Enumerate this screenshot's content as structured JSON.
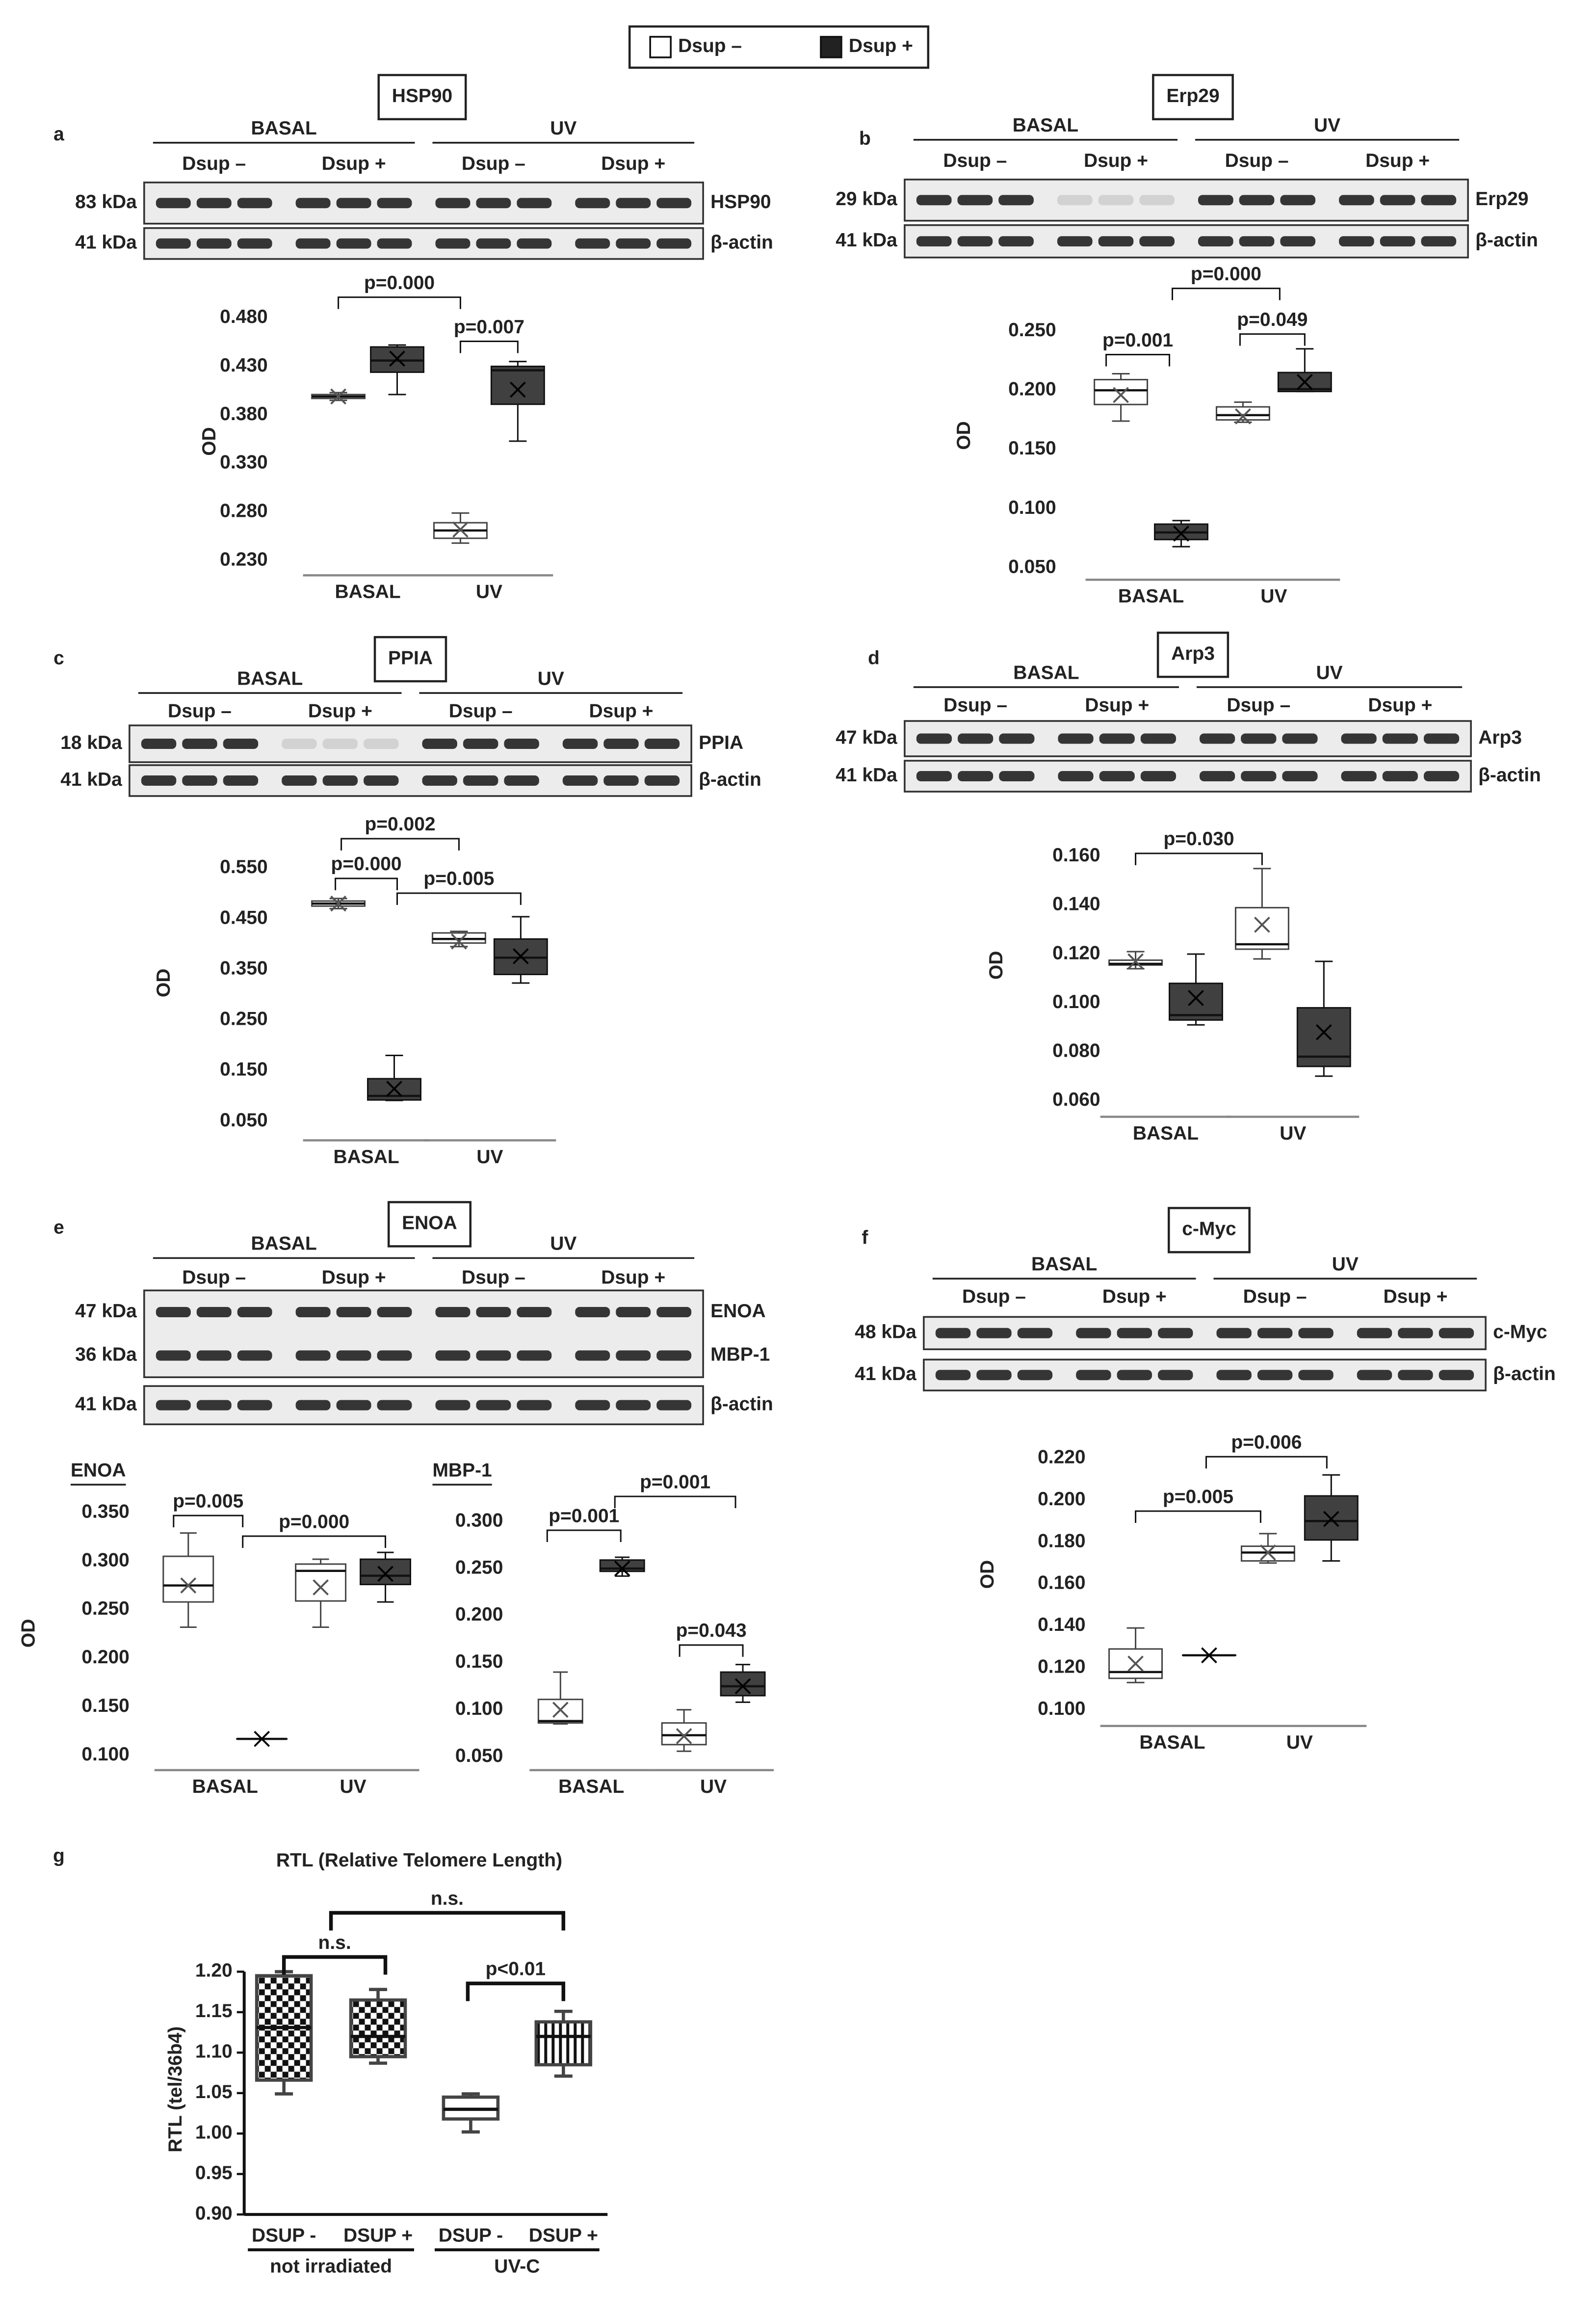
{
  "legend": [
    {
      "name": "Dsup –",
      "color": "#ffffff"
    },
    {
      "name": "Dsup +",
      "color": "#222222"
    }
  ],
  "chart_data": [
    {
      "type": "box",
      "panel": "a",
      "title": "HSP90",
      "blot": {
        "groups": [
          "BASAL",
          "UV"
        ],
        "lanes": [
          "Dsup –",
          "Dsup +",
          "Dsup –",
          "Dsup +"
        ],
        "strips": [
          [
            {
              "kda": "83 kDa",
              "name": "HSP90"
            }
          ],
          [
            {
              "kda": "41 kDa",
              "name": "β-actin"
            }
          ]
        ]
      },
      "ylabel": "OD",
      "categories": [
        "BASAL",
        "UV"
      ],
      "ylim": [
        0.23,
        0.48
      ],
      "yticks": [
        {
          "value": 0.23,
          "label": "0.230"
        },
        {
          "value": 0.28,
          "label": "0.280"
        },
        {
          "value": 0.33,
          "label": "0.330"
        },
        {
          "value": 0.38,
          "label": "0.380"
        },
        {
          "value": 0.43,
          "label": "0.430"
        },
        {
          "value": 0.48,
          "label": "0.480"
        }
      ],
      "series": [
        {
          "color": "#ffffff",
          "boxes": [
            {
              "min": 0.395,
              "q1": 0.397,
              "median": 0.399,
              "q3": 0.401,
              "max": 0.403,
              "mean": 0.399
            },
            {
              "min": 0.248,
              "q1": 0.253,
              "median": 0.261,
              "q3": 0.269,
              "max": 0.279,
              "mean": 0.262
            }
          ]
        },
        {
          "color": "#404040",
          "boxes": [
            {
              "min": 0.401,
              "q1": 0.424,
              "median": 0.436,
              "q3": 0.45,
              "max": 0.452,
              "mean": 0.438
            },
            {
              "min": 0.353,
              "q1": 0.391,
              "median": 0.426,
              "q3": 0.43,
              "max": 0.435,
              "mean": 0.406
            }
          ]
        }
      ],
      "annotations": [
        "p=0.000",
        "p=0.007"
      ]
    },
    {
      "type": "box",
      "panel": "b",
      "title": "Erp29",
      "blot": {
        "groups": [
          "BASAL",
          "UV"
        ],
        "lanes": [
          "Dsup –",
          "Dsup +",
          "Dsup –",
          "Dsup +"
        ],
        "strips": [
          [
            {
              "kda": "29 kDa",
              "name": "Erp29"
            }
          ],
          [
            {
              "kda": "41 kDa",
              "name": "β-actin"
            }
          ]
        ]
      },
      "ylabel": "OD",
      "categories": [
        "BASAL",
        "UV"
      ],
      "ylim": [
        0.05,
        0.25
      ],
      "yticks": [
        {
          "value": 0.05,
          "label": "0.050"
        },
        {
          "value": 0.1,
          "label": "0.100"
        },
        {
          "value": 0.15,
          "label": "0.150"
        },
        {
          "value": 0.2,
          "label": "0.200"
        },
        {
          "value": 0.25,
          "label": "0.250"
        }
      ],
      "series": [
        {
          "color": "#ffffff",
          "boxes": [
            {
              "min": 0.174,
              "q1": 0.188,
              "median": 0.2,
              "q3": 0.209,
              "max": 0.214,
              "mean": 0.196
            },
            {
              "min": 0.173,
              "q1": 0.175,
              "median": 0.179,
              "q3": 0.186,
              "max": 0.19,
              "mean": 0.178
            }
          ]
        },
        {
          "color": "#404040",
          "boxes": [
            {
              "min": 0.068,
              "q1": 0.074,
              "median": 0.08,
              "q3": 0.087,
              "max": 0.09,
              "mean": 0.079
            },
            {
              "min": 0.199,
              "q1": 0.199,
              "median": 0.201,
              "q3": 0.215,
              "max": 0.235,
              "mean": 0.207
            }
          ]
        }
      ],
      "annotations": [
        "p=0.001",
        "p=0.000",
        "p=0.049"
      ]
    },
    {
      "type": "box",
      "panel": "c",
      "title": "PPIA",
      "blot": {
        "groups": [
          "BASAL",
          "UV"
        ],
        "lanes": [
          "Dsup –",
          "Dsup +",
          "Dsup –",
          "Dsup +"
        ],
        "strips": [
          [
            {
              "kda": "18 kDa",
              "name": "PPIA"
            }
          ],
          [
            {
              "kda": "41 kDa",
              "name": "β-actin"
            }
          ]
        ]
      },
      "ylabel": "OD",
      "categories": [
        "BASAL",
        "UV"
      ],
      "ylim": [
        0.05,
        0.55
      ],
      "yticks": [
        {
          "value": 0.05,
          "label": "0.050"
        },
        {
          "value": 0.15,
          "label": "0.150"
        },
        {
          "value": 0.25,
          "label": "0.250"
        },
        {
          "value": 0.35,
          "label": "0.350"
        },
        {
          "value": 0.45,
          "label": "0.450"
        },
        {
          "value": 0.55,
          "label": "0.550"
        }
      ],
      "series": [
        {
          "color": "#ffffff",
          "boxes": [
            {
              "min": 0.47,
              "q1": 0.475,
              "median": 0.48,
              "q3": 0.485,
              "max": 0.49,
              "mean": 0.48
            },
            {
              "min": 0.395,
              "q1": 0.402,
              "median": 0.41,
              "q3": 0.422,
              "max": 0.425,
              "mean": 0.405
            }
          ]
        },
        {
          "color": "#404040",
          "boxes": [
            {
              "min": 0.091,
              "q1": 0.092,
              "median": 0.1,
              "q3": 0.134,
              "max": 0.18,
              "mean": 0.114
            },
            {
              "min": 0.323,
              "q1": 0.34,
              "median": 0.373,
              "q3": 0.41,
              "max": 0.454,
              "mean": 0.376
            }
          ]
        }
      ],
      "annotations": [
        "p=0.002",
        "p=0.000",
        "p=0.005"
      ]
    },
    {
      "type": "box",
      "panel": "d",
      "title": "Arp3",
      "blot": {
        "groups": [
          "BASAL",
          "UV"
        ],
        "lanes": [
          "Dsup –",
          "Dsup +",
          "Dsup –",
          "Dsup +"
        ],
        "strips": [
          [
            {
              "kda": "47 kDa",
              "name": "Arp3"
            }
          ],
          [
            {
              "kda": "41 kDa",
              "name": "β-actin"
            }
          ]
        ]
      },
      "ylabel": "OD",
      "categories": [
        "BASAL",
        "UV"
      ],
      "ylim": [
        0.06,
        0.16
      ],
      "yticks": [
        {
          "value": 0.06,
          "label": "0.060"
        },
        {
          "value": 0.08,
          "label": "0.080"
        },
        {
          "value": 0.1,
          "label": "0.100"
        },
        {
          "value": 0.12,
          "label": "0.120"
        },
        {
          "value": 0.14,
          "label": "0.140"
        },
        {
          "value": 0.16,
          "label": "0.160"
        }
      ],
      "series": [
        {
          "color": "#ffffff",
          "boxes": [
            {
              "min": 0.114,
              "q1": 0.1155,
              "median": 0.116,
              "q3": 0.1175,
              "max": 0.121,
              "mean": 0.117
            },
            {
              "min": 0.118,
              "q1": 0.122,
              "median": 0.124,
              "q3": 0.139,
              "max": 0.155,
              "mean": 0.132
            }
          ]
        },
        {
          "color": "#404040",
          "boxes": [
            {
              "min": 0.091,
              "q1": 0.093,
              "median": 0.095,
              "q3": 0.108,
              "max": 0.12,
              "mean": 0.102
            },
            {
              "min": 0.07,
              "q1": 0.074,
              "median": 0.078,
              "q3": 0.098,
              "max": 0.117,
              "mean": 0.088
            }
          ]
        }
      ],
      "annotations": [
        "p=0.030"
      ]
    },
    {
      "type": "box",
      "panel": "e",
      "title": "ENOA",
      "blot": {
        "groups": [
          "BASAL",
          "UV"
        ],
        "lanes": [
          "Dsup –",
          "Dsup +",
          "Dsup –",
          "Dsup +"
        ],
        "strips": [
          [
            {
              "kda": "47 kDa",
              "name": "ENOA"
            },
            {
              "kda": "36 kDa",
              "name": "MBP-1"
            }
          ],
          [
            {
              "kda": "41 kDa",
              "name": "β-actin"
            }
          ]
        ]
      },
      "subtitle": "ENOA",
      "ylabel": "OD",
      "categories": [
        "BASAL",
        "UV"
      ],
      "ylim": [
        0.1,
        0.35
      ],
      "yticks": [
        {
          "value": 0.1,
          "label": "0.100"
        },
        {
          "value": 0.15,
          "label": "0.150"
        },
        {
          "value": 0.2,
          "label": "0.200"
        },
        {
          "value": 0.25,
          "label": "0.250"
        },
        {
          "value": 0.3,
          "label": "0.300"
        },
        {
          "value": 0.35,
          "label": "0.350"
        }
      ],
      "series": [
        {
          "color": "#ffffff",
          "boxes": [
            {
              "min": 0.232,
              "q1": 0.258,
              "median": 0.275,
              "q3": 0.305,
              "max": 0.329,
              "mean": 0.275
            },
            {
              "min": 0.232,
              "q1": 0.259,
              "median": 0.29,
              "q3": 0.297,
              "max": 0.302,
              "mean": 0.273
            }
          ]
        },
        {
          "color": "#404040",
          "boxes": [
            {
              "min": 0.117,
              "q1": 0.117,
              "median": 0.117,
              "q3": 0.117,
              "max": 0.117,
              "mean": 0.117
            },
            {
              "min": 0.258,
              "q1": 0.276,
              "median": 0.285,
              "q3": 0.302,
              "max": 0.309,
              "mean": 0.287
            }
          ]
        }
      ],
      "annotations": [
        "p=0.005",
        "p=0.000"
      ]
    },
    {
      "type": "box",
      "subtitle": "MBP-1",
      "categories": [
        "BASAL",
        "UV"
      ],
      "ylim": [
        0.05,
        0.3
      ],
      "yticks": [
        {
          "value": 0.05,
          "label": "0.050"
        },
        {
          "value": 0.1,
          "label": "0.100"
        },
        {
          "value": 0.15,
          "label": "0.150"
        },
        {
          "value": 0.2,
          "label": "0.200"
        },
        {
          "value": 0.25,
          "label": "0.250"
        },
        {
          "value": 0.3,
          "label": "0.300"
        }
      ],
      "series": [
        {
          "color": "#ffffff",
          "boxes": [
            {
              "min": 0.085,
              "q1": 0.086,
              "median": 0.088,
              "q3": 0.111,
              "max": 0.14,
              "mean": 0.1
            },
            {
              "min": 0.056,
              "q1": 0.063,
              "median": 0.073,
              "q3": 0.086,
              "max": 0.1,
              "mean": 0.072
            }
          ]
        },
        {
          "color": "#404040",
          "boxes": [
            {
              "min": 0.242,
              "q1": 0.247,
              "median": 0.25,
              "q3": 0.259,
              "max": 0.262,
              "mean": 0.25
            },
            {
              "min": 0.108,
              "q1": 0.115,
              "median": 0.125,
              "q3": 0.14,
              "max": 0.148,
              "mean": 0.125
            }
          ]
        }
      ],
      "annotations": [
        "p=0.001",
        "p=0.001",
        "p=0.043"
      ]
    },
    {
      "type": "box",
      "panel": "f",
      "title": "c-Myc",
      "blot": {
        "groups": [
          "BASAL",
          "UV"
        ],
        "lanes": [
          "Dsup –",
          "Dsup +",
          "Dsup –",
          "Dsup +"
        ],
        "strips": [
          [
            {
              "kda": "48 kDa",
              "name": "c-Myc"
            }
          ],
          [
            {
              "kda": "41 kDa",
              "name": "β-actin"
            }
          ]
        ]
      },
      "ylabel": "OD",
      "categories": [
        "BASAL",
        "UV"
      ],
      "ylim": [
        0.1,
        0.22
      ],
      "yticks": [
        {
          "value": 0.1,
          "label": "0.100"
        },
        {
          "value": 0.12,
          "label": "0.120"
        },
        {
          "value": 0.14,
          "label": "0.140"
        },
        {
          "value": 0.16,
          "label": "0.160"
        },
        {
          "value": 0.18,
          "label": "0.180"
        },
        {
          "value": 0.2,
          "label": "0.200"
        },
        {
          "value": 0.22,
          "label": "0.220"
        }
      ],
      "series": [
        {
          "color": "#ffffff",
          "boxes": [
            {
              "min": 0.113,
              "q1": 0.115,
              "median": 0.118,
              "q3": 0.129,
              "max": 0.139,
              "mean": 0.122
            },
            {
              "min": 0.17,
              "q1": 0.171,
              "median": 0.175,
              "q3": 0.178,
              "max": 0.184,
              "mean": 0.175
            }
          ]
        },
        {
          "color": "#404040",
          "boxes": [
            {
              "min": 0.126,
              "q1": 0.126,
              "median": 0.126,
              "q3": 0.126,
              "max": 0.126,
              "mean": 0.126
            },
            {
              "min": 0.171,
              "q1": 0.181,
              "median": 0.19,
              "q3": 0.202,
              "max": 0.212,
              "mean": 0.191
            }
          ]
        }
      ],
      "annotations": [
        "p=0.005",
        "p=0.006"
      ]
    },
    {
      "type": "box",
      "panel": "g",
      "title": "RTL (Relative Telomere Length)",
      "ylabel": "RTL (tel/36b4)",
      "categories": [
        "not irradiated",
        "UV-C"
      ],
      "lane_labels": [
        "DSUP -",
        "DSUP +"
      ],
      "ylim": [
        0.9,
        1.2
      ],
      "yticks": [
        {
          "value": 0.9,
          "label": "0.90"
        },
        {
          "value": 0.95,
          "label": "0.95"
        },
        {
          "value": 1.0,
          "label": "1.00"
        },
        {
          "value": 1.05,
          "label": "1.05"
        },
        {
          "value": 1.1,
          "label": "1.10"
        },
        {
          "value": 1.15,
          "label": "1.15"
        },
        {
          "value": 1.2,
          "label": "1.20"
        }
      ],
      "series": [
        {
          "color": "#ffffff",
          "patterns": [
            "checker",
            "none"
          ],
          "boxes": [
            {
              "min": 1.049,
              "q1": 1.066,
              "median": 1.131,
              "q3": 1.195,
              "max": 1.2
            },
            {
              "min": 1.002,
              "q1": 1.018,
              "median": 1.03,
              "q3": 1.045,
              "max": 1.049
            }
          ]
        },
        {
          "color": "#ffffff",
          "patterns": [
            "checker",
            "vstripes"
          ],
          "boxes": [
            {
              "min": 1.087,
              "q1": 1.095,
              "median": 1.12,
              "q3": 1.165,
              "max": 1.178
            },
            {
              "min": 1.071,
              "q1": 1.085,
              "median": 1.12,
              "q3": 1.138,
              "max": 1.151
            }
          ]
        }
      ],
      "annotations": [
        "n.s.",
        "n.s.",
        "p<0.01"
      ]
    }
  ]
}
